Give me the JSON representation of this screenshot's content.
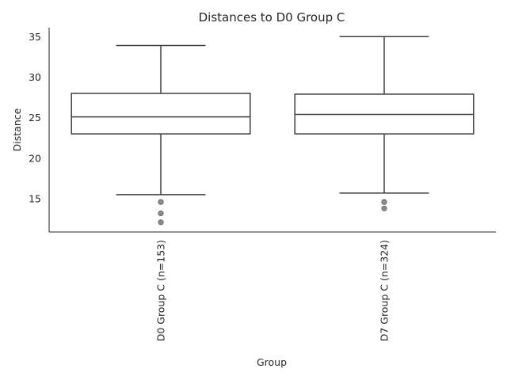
{
  "chart_data": {
    "type": "box",
    "title": "Distances to D0 Group C",
    "xlabel": "Group",
    "ylabel": "Distance",
    "ylim": [
      10.9,
      36.1
    ],
    "yticks": [
      15,
      20,
      25,
      30,
      35
    ],
    "grid": false,
    "categories": [
      "D0 Group C (n=153)",
      "D7 Group C (n=324)"
    ],
    "boxes": [
      {
        "whisker_low": 15.5,
        "q1": 23.0,
        "median": 25.1,
        "q3": 28.0,
        "whisker_high": 33.9,
        "outliers": [
          14.6,
          13.2,
          12.1
        ]
      },
      {
        "whisker_low": 15.7,
        "q1": 23.0,
        "median": 25.4,
        "q3": 27.9,
        "whisker_high": 35.0,
        "outliers": [
          14.6,
          13.8
        ]
      }
    ],
    "colors": {
      "box_edge": "#3f3f3f",
      "box_fill": "#ffffff",
      "outlier": "#3f3f3f",
      "text": "#262626"
    }
  }
}
